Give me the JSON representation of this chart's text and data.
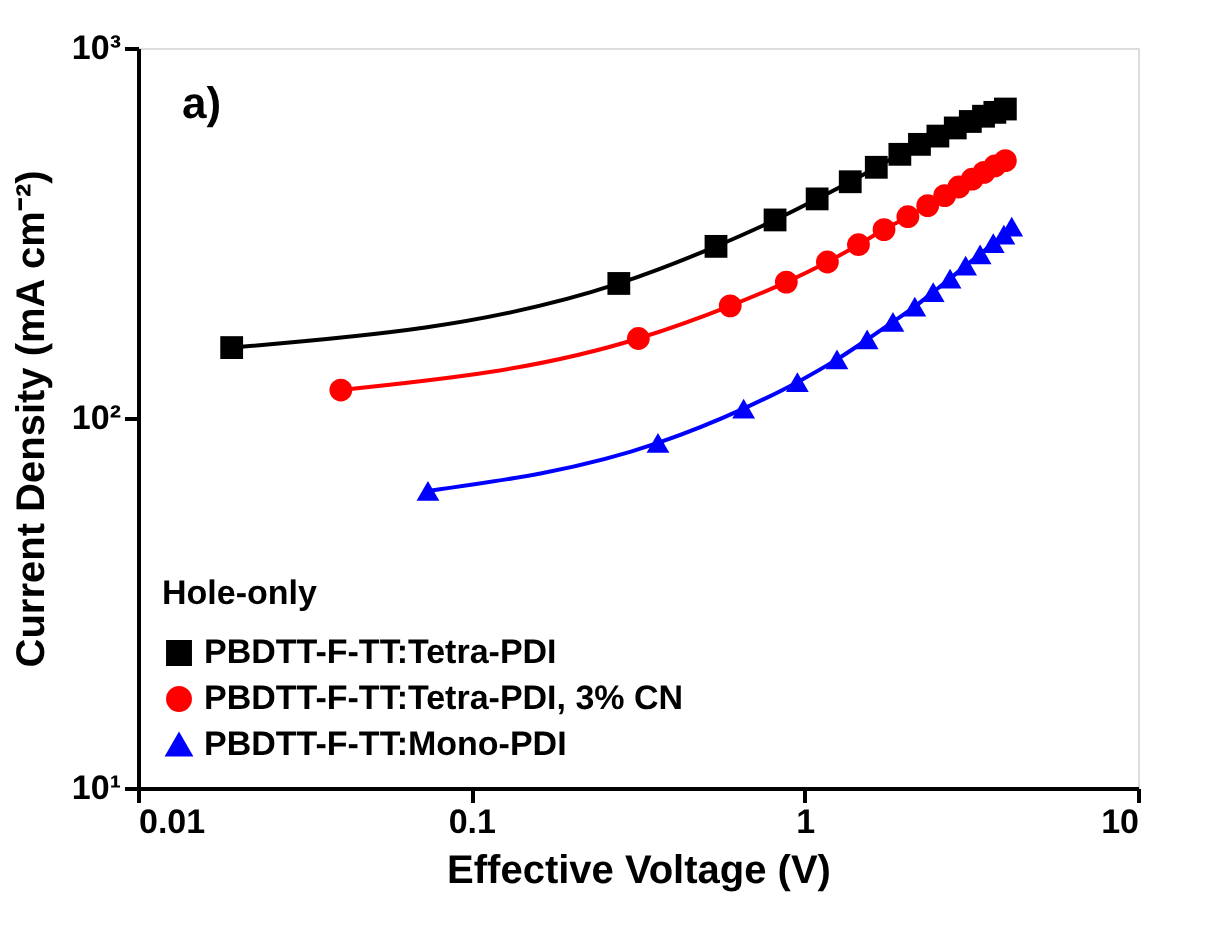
{
  "chart_data": {
    "type": "line",
    "xlabel": "Effective Voltage (V)",
    "ylabel": "Current Density (mA cm⁻²)",
    "legend_title": "Hole-only",
    "annotations": [
      "a)"
    ],
    "log": "xy",
    "xlim": [
      0.01,
      10
    ],
    "xticks": [
      0.01,
      0.1,
      1,
      10
    ],
    "ylim": [
      10,
      1000
    ],
    "yticks": [
      {
        "value": 10,
        "label": "10¹"
      },
      {
        "value": 100,
        "label": "10²"
      },
      {
        "value": 1000,
        "label": "10³"
      }
    ],
    "legend": "bottom left",
    "grid": false,
    "series": [
      {
        "name": "PBDTT-F-TT:Tetra-PDI",
        "color": "#000000",
        "marker": "square",
        "x": [
          0.0191,
          0.277,
          0.542,
          0.815,
          1.09,
          1.37,
          1.64,
          1.93,
          2.21,
          2.51,
          2.83,
          3.14,
          3.44,
          3.72,
          4.0
        ],
        "values": [
          155,
          231,
          291,
          343,
          391,
          435,
          476,
          516,
          549,
          578,
          608,
          633,
          654,
          670,
          684
        ]
      },
      {
        "name": "PBDTT-F-TT:Tetra-PDI, 3% CN",
        "color": "#ff0000",
        "marker": "circle",
        "x": [
          0.0406,
          0.317,
          0.598,
          0.881,
          1.17,
          1.45,
          1.73,
          2.04,
          2.34,
          2.63,
          2.9,
          3.18,
          3.45,
          3.72,
          4.0
        ],
        "values": [
          119,
          164,
          201,
          233,
          264,
          294,
          323,
          350,
          375,
          399,
          421,
          442,
          461,
          480,
          496
        ]
      },
      {
        "name": "PBDTT-F-TT:Mono-PDI",
        "color": "#0000ff",
        "marker": "triangle",
        "x": [
          0.0741,
          0.363,
          0.656,
          0.951,
          1.25,
          1.54,
          1.84,
          2.14,
          2.43,
          2.73,
          3.04,
          3.36,
          3.68,
          3.96,
          4.18
        ],
        "values": [
          63.5,
          85.6,
          106,
          125,
          144,
          163,
          182,
          200,
          219,
          238,
          258,
          277,
          297,
          313,
          329
        ]
      }
    ]
  }
}
